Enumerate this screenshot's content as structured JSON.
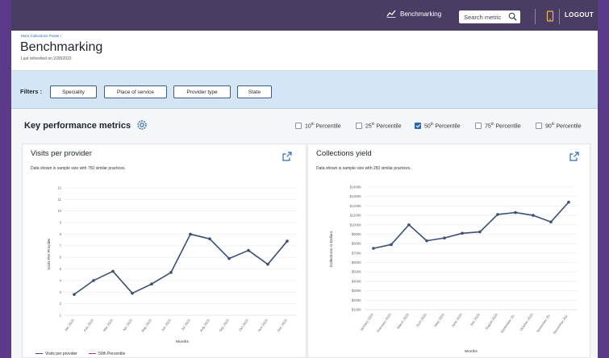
{
  "topbar": {
    "benchmarking_label": "Benchmarking",
    "search_placeholder": "Search metric",
    "logout_label": "LOGOUT"
  },
  "header": {
    "breadcrumb": "More Collections Poster  /",
    "title": "Benchmarking",
    "refreshed": "Last refreshed on 2/28/2023"
  },
  "filters": {
    "label": "Filters :",
    "chips": [
      "Speciality",
      "Place of service",
      "Provider type",
      "State"
    ]
  },
  "kpi": {
    "title": "Key performance metrics",
    "percentiles": [
      {
        "num": "10",
        "sup": "th",
        "label": " Percentile",
        "checked": false
      },
      {
        "num": "25",
        "sup": "th",
        "label": " Percentile",
        "checked": false
      },
      {
        "num": "50",
        "sup": "th",
        "label": " Percentile",
        "checked": true
      },
      {
        "num": "75",
        "sup": "th",
        "label": " Percentile",
        "checked": false
      },
      {
        "num": "90",
        "sup": "th",
        "label": " Percentile",
        "checked": false
      }
    ]
  },
  "colors": {
    "line": "#3b4f7a",
    "percentile_line": "#b03a5b",
    "accent": "#2a6bb3"
  },
  "chart_data": [
    {
      "type": "line",
      "title": "Visits per provider",
      "subtitle": "Data shown is sample size with 750 similar practices.",
      "xlabel": "Months",
      "ylabel": "Visits Per Provider",
      "categories": [
        "Jan 2020",
        "Feb 2020",
        "Mar 2020",
        "Apr 2020",
        "May 2020",
        "Jun 2020",
        "Jul 2020",
        "Aug 2020",
        "Sep 2020",
        "Oct 2020",
        "Nov 2020",
        "Dec 2020"
      ],
      "yticks": [
        "1",
        "2",
        "3",
        "4",
        "5",
        "6",
        "7",
        "8",
        "9",
        "10",
        "11",
        "12"
      ],
      "ylim": [
        1,
        12
      ],
      "series": [
        {
          "name": "Visits per provider",
          "values": [
            2.8,
            4.0,
            4.8,
            2.9,
            3.7,
            4.7,
            8.0,
            7.6,
            5.9,
            6.6,
            5.4,
            7.4
          ]
        }
      ],
      "legend": [
        "Visits per provider",
        "50th Percentile"
      ]
    },
    {
      "type": "line",
      "title": "Collections yield",
      "subtitle": "Data shown is sample size with 250 similar practices.",
      "xlabel": "Months",
      "ylabel": "Collections in Dollars",
      "categories": [
        "January 2020",
        "February 2020",
        "March 2020",
        "April 2020",
        "May 2020",
        "June 2020",
        "July 2020",
        "August 2020",
        "September 20..",
        "October 2020",
        "November 20..",
        "December 202.."
      ],
      "yticks": [
        "$100K",
        "$200K",
        "$300K",
        "$400K",
        "$500K",
        "$600K",
        "$700K",
        "$800K",
        "$900K",
        "$1000K",
        "$1100K",
        "$1200K",
        "$1300K",
        "$1400K"
      ],
      "ylim": [
        100,
        1400
      ],
      "series": [
        {
          "name": "Collections yield",
          "values": [
            750,
            790,
            1000,
            830,
            860,
            910,
            925,
            1110,
            1130,
            1100,
            1030,
            1240
          ]
        }
      ]
    }
  ]
}
